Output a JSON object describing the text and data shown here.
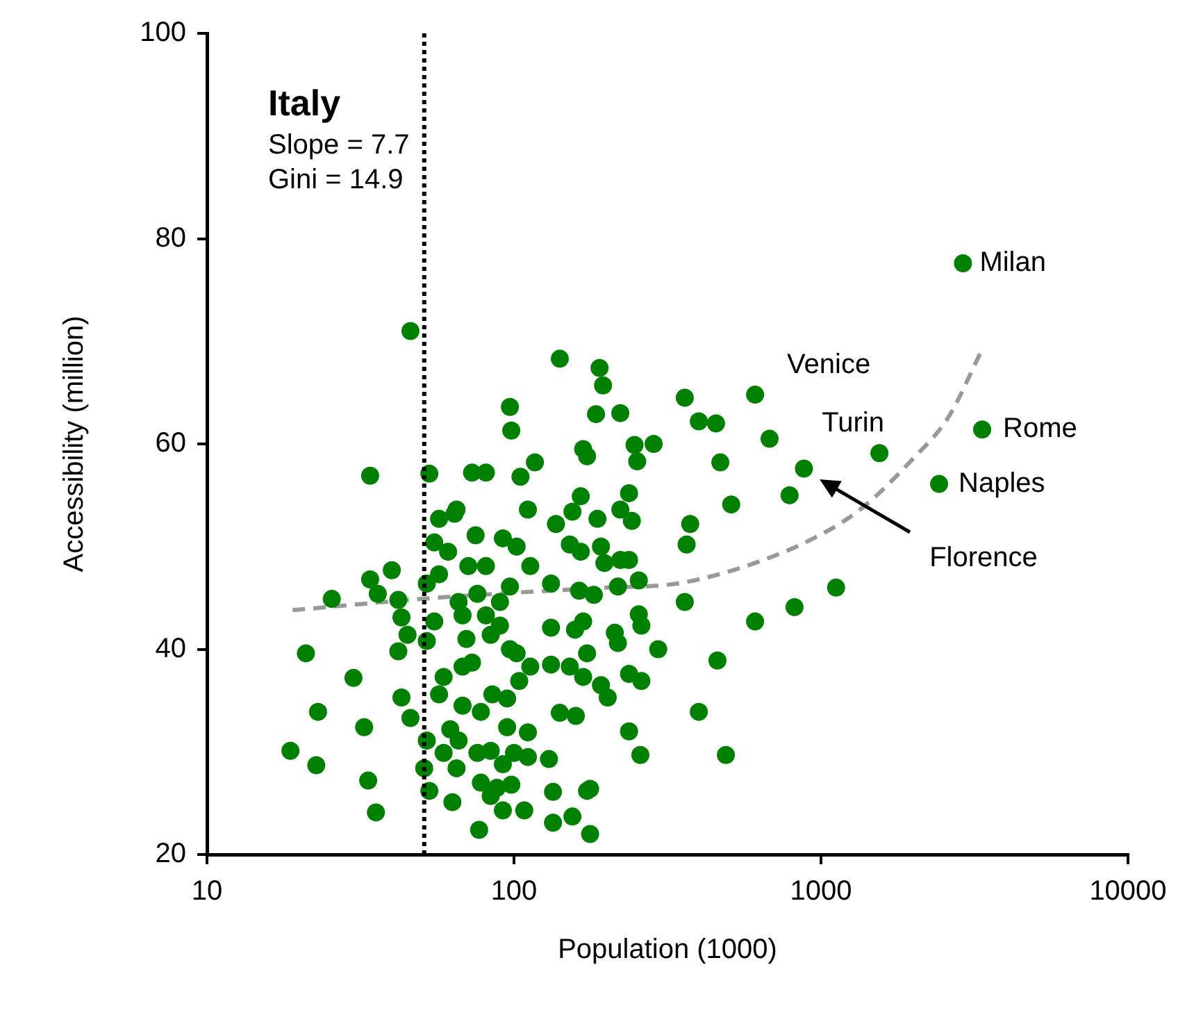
{
  "chart_data": {
    "type": "scatter",
    "xlabel": "Population (1000)",
    "ylabel": "Accessibility (million)",
    "log": "x",
    "xlim": [
      10,
      10000
    ],
    "xticks": [
      10,
      100,
      1000,
      10000
    ],
    "ylim": [
      20,
      100
    ],
    "yticks": [
      20,
      40,
      60,
      80,
      100
    ],
    "grid": false,
    "legend": false,
    "marker": "circle",
    "ref_lines": [
      {
        "axis": "x",
        "value": 51,
        "color": "#000000",
        "line_style": "dotted"
      }
    ],
    "annotations": [
      "Italy",
      "Slope = 7.7",
      "Gini = 14.9",
      {
        "text": "Milan",
        "x": 2900,
        "y": 77.6
      },
      {
        "text": "Venice",
        "x": 610,
        "y": 64.8
      },
      {
        "text": "Turin",
        "x": 1550,
        "y": 59.1
      },
      {
        "text": "Rome",
        "x": 3350,
        "y": 61.4
      },
      {
        "text": "Naples",
        "x": 2425,
        "y": 56.1
      },
      "Florence"
    ],
    "series": [
      {
        "color": "#008000",
        "x": [
          46,
          34,
          53,
          57,
          65,
          55,
          61,
          40,
          34,
          36,
          25.5,
          42,
          52,
          57,
          43,
          55,
          45,
          52,
          42,
          21,
          30,
          43,
          46,
          23,
          32.5,
          52,
          18.7,
          22.7,
          51,
          33.5,
          53,
          63,
          35.5,
          59,
          141,
          190,
          195,
          97,
          98,
          185,
          222,
          73,
          81,
          105,
          117,
          168,
          173,
          165,
          187,
          222,
          111,
          137,
          155,
          152,
          165,
          197,
          192,
          132,
          163,
          182,
          218,
          222,
          113,
          102,
          75,
          92,
          64,
          71,
          81,
          97,
          90,
          76,
          66,
          68,
          81,
          90,
          70,
          84,
          97,
          73,
          102,
          113,
          68,
          132,
          158,
          168,
          132,
          152,
          173,
          168,
          192,
          202,
          57,
          68,
          78,
          85,
          95,
          104,
          141,
          159,
          95,
          111,
          62,
          66,
          59,
          65,
          76,
          84,
          92,
          100,
          111,
          130,
          78,
          88,
          98,
          84,
          92,
          108,
          77,
          134,
          173,
          134,
          155,
          177,
          360,
          610,
          400,
          455,
          680,
          247,
          285,
          252,
          470,
          880,
          790,
          237,
          510,
          242,
          375,
          365,
          237,
          255,
          360,
          1120,
          820,
          610,
          255,
          260,
          213,
          218,
          295,
          460,
          237,
          260,
          400,
          237,
          258,
          490,
          177,
          2900,
          3350,
          2425,
          1550
        ],
        "values": [
          71.0,
          56.9,
          57.1,
          52.7,
          53.6,
          50.4,
          49.5,
          47.7,
          46.8,
          45.4,
          44.9,
          44.8,
          46.4,
          47.3,
          43.1,
          42.7,
          41.4,
          40.8,
          39.8,
          39.6,
          37.2,
          35.3,
          33.3,
          33.9,
          32.4,
          31.1,
          30.1,
          28.7,
          28.4,
          27.2,
          26.2,
          25.1,
          24.1,
          37.3,
          68.3,
          67.4,
          65.7,
          63.6,
          61.3,
          62.9,
          63.0,
          57.2,
          57.2,
          56.8,
          58.2,
          59.5,
          58.8,
          54.9,
          52.7,
          53.6,
          53.6,
          52.2,
          53.4,
          50.2,
          49.5,
          48.4,
          50.0,
          46.4,
          45.7,
          45.3,
          46.1,
          48.7,
          48.1,
          50.0,
          51.1,
          50.8,
          53.2,
          48.1,
          48.1,
          46.1,
          44.6,
          45.4,
          44.6,
          43.3,
          43.3,
          42.3,
          41.0,
          41.4,
          40.0,
          38.7,
          39.6,
          38.3,
          38.3,
          42.1,
          41.9,
          42.7,
          38.5,
          38.3,
          39.6,
          37.3,
          36.5,
          35.3,
          35.6,
          34.5,
          33.9,
          35.6,
          35.2,
          36.9,
          33.8,
          33.5,
          32.4,
          31.9,
          32.2,
          31.1,
          29.9,
          28.4,
          29.9,
          30.1,
          28.8,
          29.9,
          29.5,
          29.3,
          27.0,
          26.5,
          26.8,
          25.7,
          24.3,
          24.3,
          22.4,
          26.1,
          26.2,
          23.1,
          23.7,
          22.0,
          64.5,
          64.8,
          62.2,
          62.0,
          60.5,
          59.9,
          60.0,
          58.3,
          58.2,
          57.6,
          55.0,
          55.2,
          54.1,
          52.5,
          52.2,
          50.2,
          48.7,
          46.7,
          44.6,
          46.0,
          44.1,
          42.7,
          43.4,
          42.3,
          41.6,
          40.6,
          40.0,
          38.9,
          37.6,
          36.9,
          33.9,
          32.0,
          29.7,
          29.7,
          26.4,
          77.6,
          61.4,
          56.1,
          59.1
        ]
      },
      {
        "type": "line",
        "color": "#999999",
        "line_style": "dashed",
        "marker": "none",
        "x": [
          19,
          50,
          100,
          200,
          340,
          570,
          960,
          1340,
          2000,
          2600,
          3300
        ],
        "values": [
          43.8,
          44.9,
          45.5,
          46.0,
          46.4,
          48.1,
          50.9,
          53.6,
          58.6,
          62.6,
          68.8
        ]
      }
    ]
  }
}
